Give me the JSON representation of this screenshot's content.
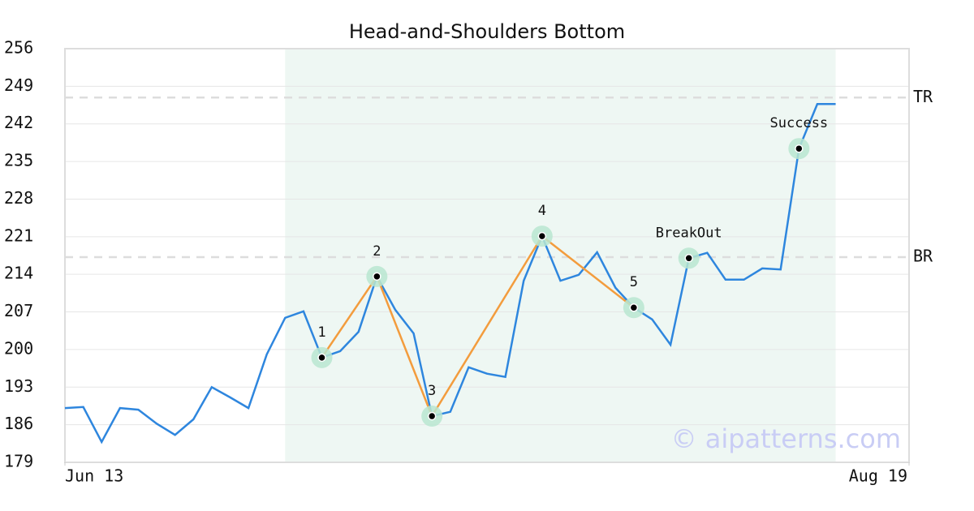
{
  "chart_data": {
    "type": "line",
    "title": "Head-and-Shoulders Bottom",
    "x": [
      0,
      1,
      2,
      3,
      4,
      5,
      6,
      7,
      8,
      9,
      10,
      11,
      12,
      13,
      14,
      15,
      16,
      17,
      18,
      19,
      20,
      21,
      22,
      23,
      24,
      25,
      26,
      27,
      28,
      29,
      30,
      31,
      32,
      33,
      34,
      35,
      36,
      37,
      38,
      39,
      40,
      41,
      42
    ],
    "series": [
      {
        "color": "#2e86de",
        "values": [
          189.1,
          189.3,
          182.8,
          189.1,
          188.8,
          186.2,
          184.1,
          187.0,
          193.0,
          191.1,
          189.1,
          199.1,
          205.9,
          207.1,
          198.5,
          199.7,
          203.3,
          213.6,
          207.4,
          203.0,
          187.6,
          188.4,
          196.7,
          195.5,
          194.9,
          212.8,
          221.1,
          212.8,
          213.9,
          218.1,
          211.5,
          207.8,
          205.6,
          200.9,
          217.0,
          218.0,
          213.0,
          213.0,
          215.1,
          214.9,
          237.4,
          245.7,
          245.7
        ]
      }
    ],
    "xlim": [
      0,
      46
    ],
    "xticks": [
      {
        "value": 0,
        "label": "Jun 13"
      },
      {
        "value": 46,
        "label": "Aug 19"
      }
    ],
    "ylim": [
      179,
      256
    ],
    "yticks": [
      179,
      186,
      193,
      200,
      207,
      214,
      221,
      228,
      235,
      242,
      249,
      256
    ],
    "grid": true,
    "highlight_range": [
      12,
      42
    ],
    "levels": [
      {
        "label": "TR",
        "value": 246.9
      },
      {
        "label": "BR",
        "value": 217.2
      }
    ],
    "pattern_color": "#f39c3d",
    "points": [
      {
        "label": "1",
        "x": 14,
        "value": 198.5,
        "pattern": true
      },
      {
        "label": "2",
        "x": 17,
        "value": 213.6,
        "pattern": true
      },
      {
        "label": "3",
        "x": 20,
        "value": 187.6,
        "pattern": true
      },
      {
        "label": "4",
        "x": 26,
        "value": 221.1,
        "pattern": true
      },
      {
        "label": "5",
        "x": 31,
        "value": 207.8,
        "pattern": true
      },
      {
        "label": "BreakOut",
        "x": 34,
        "value": 217.0,
        "pattern": false
      },
      {
        "label": "Success",
        "x": 40,
        "value": 237.4,
        "pattern": false
      }
    ],
    "watermark": "© aipatterns.com"
  }
}
